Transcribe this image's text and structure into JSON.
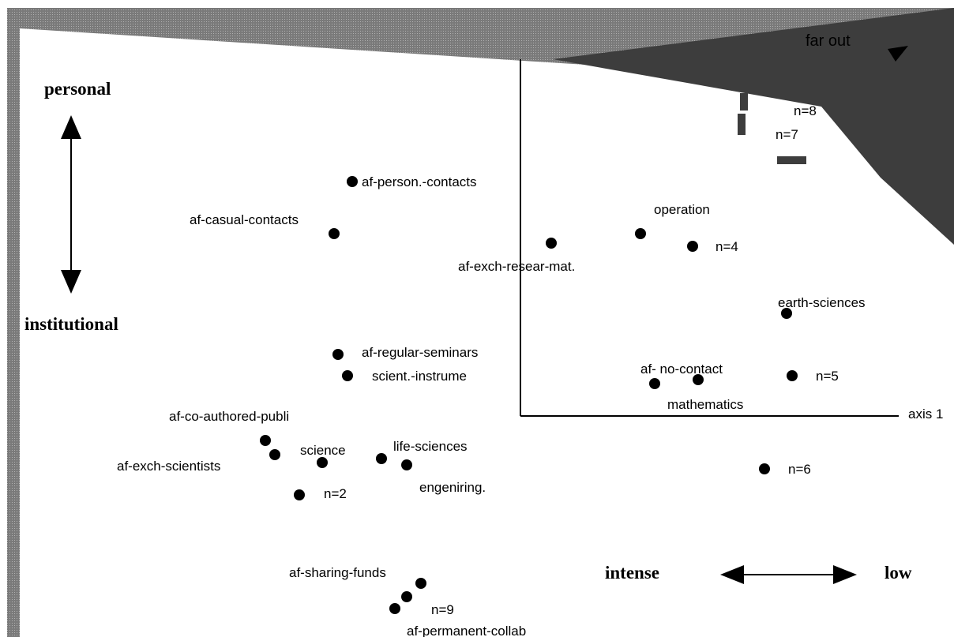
{
  "chart_data": {
    "type": "scatter",
    "axis_label_x": "axis 1",
    "dimensions": {
      "vertical": {
        "top": "personal",
        "bottom": "institutional"
      },
      "horizontal": {
        "left": "intense",
        "right": "low"
      }
    },
    "corner_label": "far out",
    "points": [
      {
        "label": "af-person.-contacts"
      },
      {
        "label": "af-casual-contacts"
      },
      {
        "label": "af-exch-resear-mat."
      },
      {
        "label": "operation"
      },
      {
        "label": "n=4"
      },
      {
        "label": "earth-sciences"
      },
      {
        "label": "af-regular-seminars"
      },
      {
        "label": "scient.-instrume"
      },
      {
        "label": "af- no-contact"
      },
      {
        "label": "mathematics"
      },
      {
        "label": "n=5"
      },
      {
        "label": "af-co-authored-publi"
      },
      {
        "label": "af-exch-scientists"
      },
      {
        "label": "science"
      },
      {
        "label": "life-sciences"
      },
      {
        "label": "engeniring."
      },
      {
        "label": "n=2"
      },
      {
        "label": "n=6"
      },
      {
        "label": "af-sharing-funds"
      },
      {
        "label": "n=9"
      },
      {
        "label": "af-permanent-collab"
      }
    ],
    "far_out_points": [
      {
        "label": "n=8"
      },
      {
        "label": "n=7"
      }
    ]
  }
}
